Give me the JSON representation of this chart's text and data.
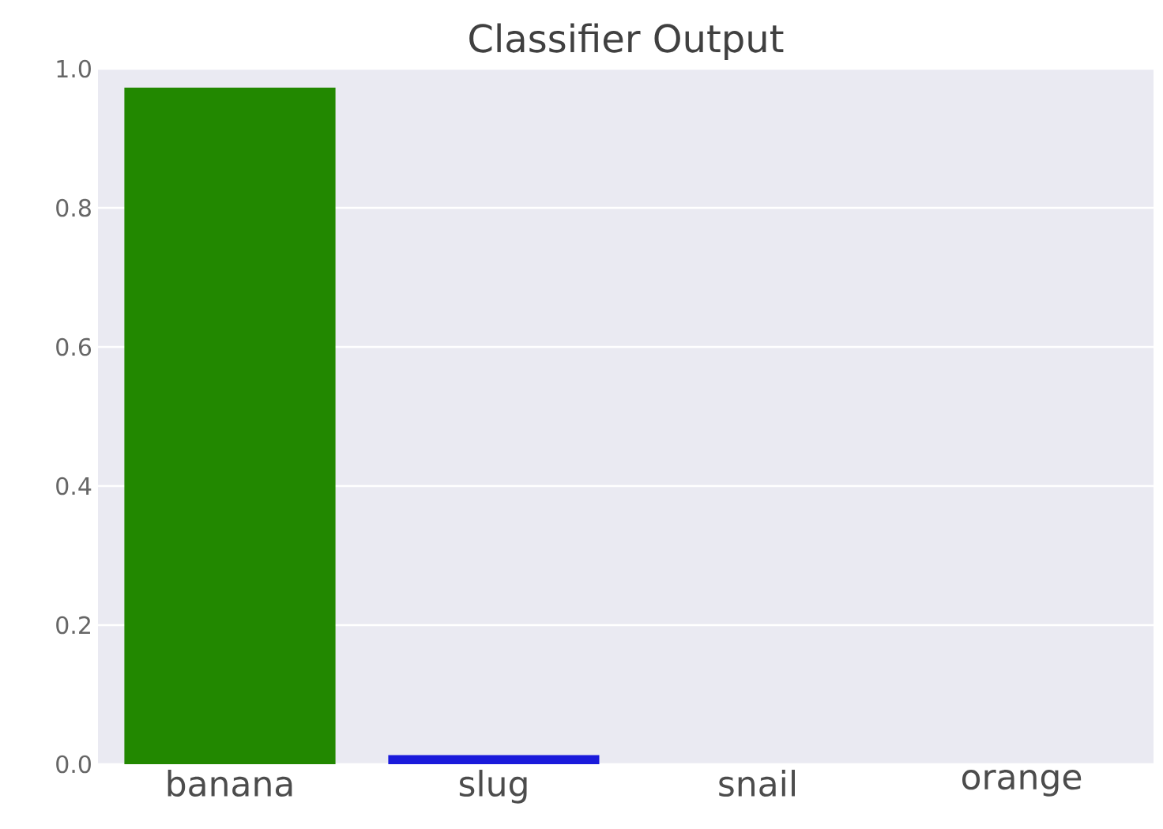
{
  "chart_data": {
    "type": "bar",
    "title": "Classifier Output",
    "categories": [
      "banana",
      "slug",
      "snail",
      "orange"
    ],
    "values": [
      0.973,
      0.013,
      0,
      0
    ],
    "colors": [
      "#228800",
      "#1a1adb",
      "#c44e52",
      "#8172b2"
    ],
    "ylim": [
      0,
      1.0
    ],
    "yticks": [
      {
        "value": 0,
        "label": "0.0"
      },
      {
        "value": 0.2,
        "label": "0.2"
      },
      {
        "value": 0.4,
        "label": "0.4"
      },
      {
        "value": 0.6,
        "label": "0.6"
      },
      {
        "value": 0.8,
        "label": "0.8"
      },
      {
        "value": 1.0,
        "label": "1.0"
      }
    ],
    "grid": "y"
  }
}
